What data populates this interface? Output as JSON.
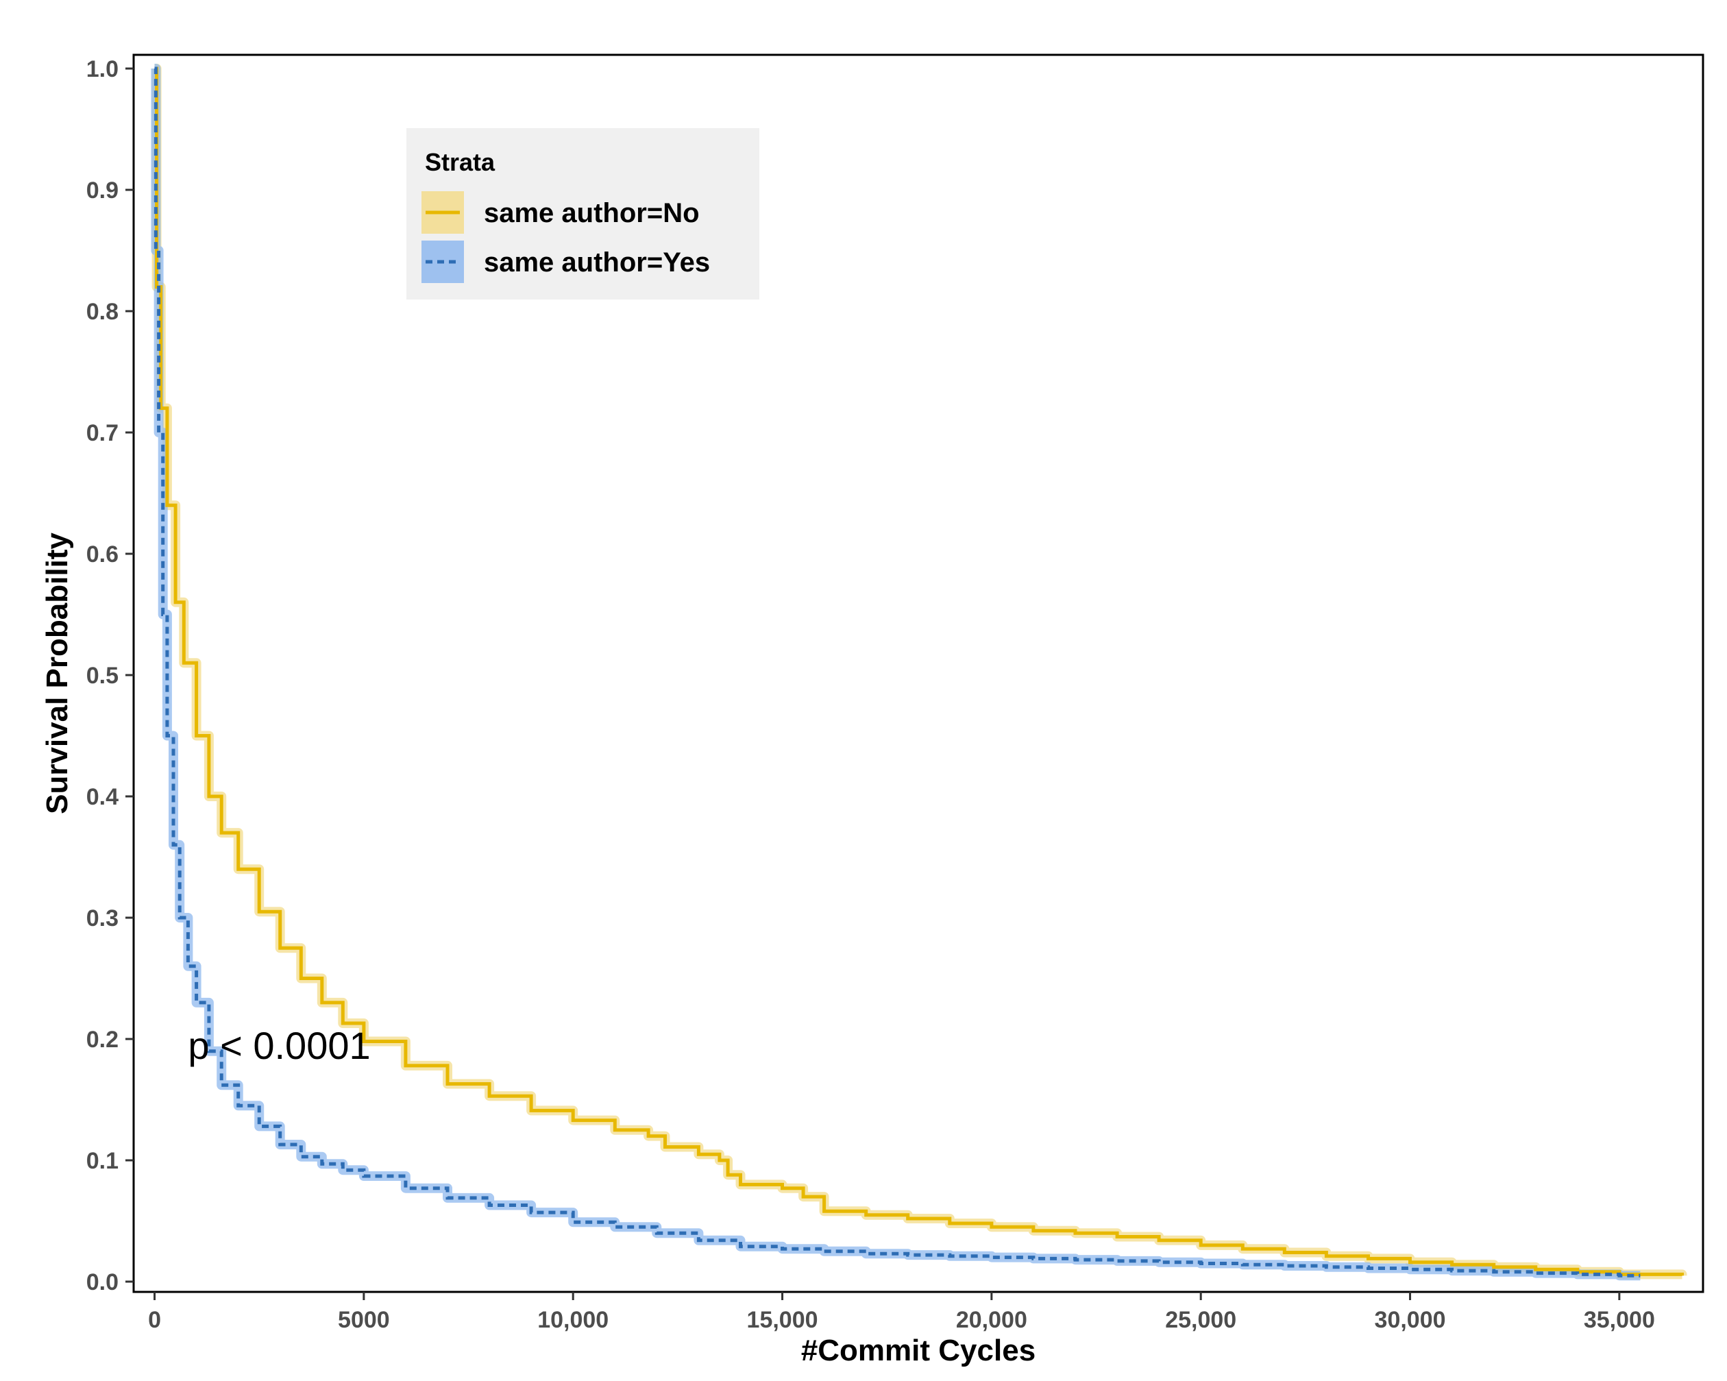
{
  "chart_data": {
    "type": "line",
    "title": "",
    "xlabel": "#Commit Cycles",
    "ylabel": "Survival Probability",
    "xlim": [
      -500,
      37000
    ],
    "ylim": [
      0,
      1.0
    ],
    "x_ticks": [
      0,
      5000,
      10000,
      15000,
      20000,
      25000,
      30000,
      35000
    ],
    "x_tick_labels": [
      "0",
      "5000",
      "10,000",
      "15,000",
      "20,000",
      "25,000",
      "30,000",
      "35,000"
    ],
    "y_ticks": [
      0.0,
      0.1,
      0.2,
      0.3,
      0.4,
      0.5,
      0.6,
      0.7,
      0.8,
      0.9,
      1.0
    ],
    "y_tick_labels": [
      "0.0",
      "0.1",
      "0.2",
      "0.3",
      "0.4",
      "0.5",
      "0.6",
      "0.7",
      "0.8",
      "0.9",
      "1.0"
    ],
    "grid": false,
    "annotation": {
      "text": "p < 0.0001",
      "x": 800,
      "y": 0.195
    },
    "legend": {
      "title": "Strata",
      "placement": "top-left"
    },
    "series": [
      {
        "name": "same author=No",
        "color": "#E7B800",
        "band_color": "#F3DC8C",
        "dash": "solid",
        "x": [
          0,
          50,
          150,
          300,
          500,
          700,
          1000,
          1300,
          1600,
          2000,
          2500,
          3000,
          3500,
          4000,
          4500,
          5000,
          6000,
          7000,
          8000,
          9000,
          10000,
          11000,
          11800,
          12200,
          13000,
          13500,
          13700,
          14000,
          15000,
          15500,
          16000,
          17000,
          18000,
          19000,
          20000,
          21000,
          22000,
          23000,
          24000,
          25000,
          26000,
          27000,
          28000,
          29000,
          30000,
          31000,
          32000,
          33000,
          34000,
          35000,
          36500
        ],
        "values": [
          1.0,
          0.82,
          0.72,
          0.64,
          0.56,
          0.51,
          0.45,
          0.4,
          0.37,
          0.34,
          0.305,
          0.275,
          0.25,
          0.23,
          0.213,
          0.198,
          0.178,
          0.163,
          0.153,
          0.141,
          0.133,
          0.125,
          0.12,
          0.111,
          0.105,
          0.1,
          0.088,
          0.08,
          0.077,
          0.07,
          0.058,
          0.055,
          0.052,
          0.048,
          0.045,
          0.042,
          0.04,
          0.037,
          0.034,
          0.03,
          0.027,
          0.024,
          0.021,
          0.019,
          0.016,
          0.014,
          0.012,
          0.01,
          0.008,
          0.006,
          0.005
        ]
      },
      {
        "name": "same author=Yes",
        "color": "#2E6DB4",
        "band_color": "#8FB8EE",
        "dash": "dashed",
        "x": [
          0,
          30,
          100,
          200,
          300,
          450,
          600,
          800,
          1000,
          1300,
          1600,
          2000,
          2500,
          3000,
          3500,
          4000,
          4500,
          5000,
          6000,
          7000,
          8000,
          9000,
          10000,
          11000,
          12000,
          13000,
          14000,
          15000,
          16000,
          17000,
          18000,
          19000,
          20000,
          21000,
          22000,
          23000,
          24000,
          25000,
          26000,
          27000,
          28000,
          29000,
          30000,
          31000,
          32000,
          33000,
          34000,
          35000,
          35500
        ],
        "values": [
          1.0,
          0.85,
          0.7,
          0.55,
          0.45,
          0.36,
          0.3,
          0.26,
          0.23,
          0.19,
          0.162,
          0.145,
          0.128,
          0.113,
          0.103,
          0.097,
          0.092,
          0.087,
          0.077,
          0.069,
          0.063,
          0.057,
          0.049,
          0.045,
          0.04,
          0.034,
          0.029,
          0.027,
          0.025,
          0.023,
          0.022,
          0.021,
          0.02,
          0.019,
          0.018,
          0.017,
          0.016,
          0.015,
          0.014,
          0.013,
          0.012,
          0.011,
          0.01,
          0.009,
          0.008,
          0.007,
          0.006,
          0.005,
          0.005
        ]
      }
    ]
  }
}
